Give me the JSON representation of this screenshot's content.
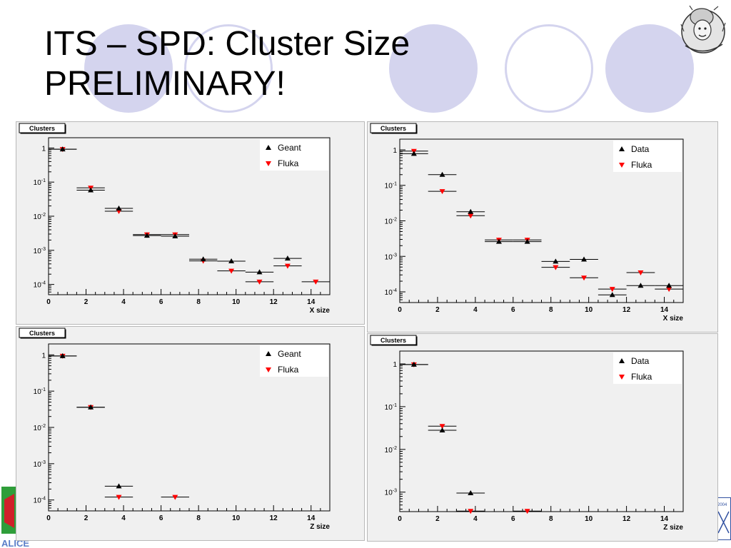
{
  "slide": {
    "title_line1": "ITS – SPD: Cluster Size",
    "title_line2": "PRELIMINARY!",
    "footer_logo_text": "ALICE",
    "corner_logo_text": "2004"
  },
  "colors": {
    "primary_series": "#000000",
    "fluka": "#ff0000",
    "deco_circle": "#d4d4ee",
    "panel_bg": "#f0f0f0"
  },
  "chart_data": [
    {
      "type": "scatter",
      "stat_box": "Clusters",
      "xlabel": "X size",
      "ylabel": "",
      "xlim": [
        0,
        15
      ],
      "ylim": [
        5e-05,
        2
      ],
      "log_y": true,
      "x_ticks": [
        "0",
        "2",
        "4",
        "6",
        "8",
        "10",
        "12",
        "14"
      ],
      "y_ticks": [
        "1",
        "10-1",
        "10-2",
        "10-3",
        "10-4"
      ],
      "legend_position": "top-right",
      "series": [
        {
          "name": "Geant",
          "marker": "triangle-up",
          "color": "#000000",
          "points": [
            [
              0.75,
              0.92
            ],
            [
              2.25,
              0.058
            ],
            [
              3.75,
              0.017
            ],
            [
              5.25,
              0.0027
            ],
            [
              6.75,
              0.0026
            ],
            [
              8.25,
              0.00055
            ],
            [
              9.75,
              0.00048
            ],
            [
              11.25,
              0.00023
            ],
            [
              12.75,
              0.00058
            ]
          ],
          "xerr": [
            0.75,
            0.75,
            0.75,
            0.75,
            0.75,
            0.75,
            0.75,
            0.75,
            0.75
          ]
        },
        {
          "name": "Fluka",
          "marker": "triangle-down",
          "color": "#ff0000",
          "points": [
            [
              0.75,
              0.92
            ],
            [
              2.25,
              0.068
            ],
            [
              3.75,
              0.014
            ],
            [
              5.25,
              0.0029
            ],
            [
              6.75,
              0.0029
            ],
            [
              8.25,
              0.00049
            ],
            [
              9.75,
              0.00025
            ],
            [
              11.25,
              0.00012
            ],
            [
              12.75,
              0.00035
            ],
            [
              14.25,
              0.00012
            ]
          ],
          "xerr": [
            0.75,
            0.75,
            0.75,
            0.75,
            0.75,
            0.75,
            0.75,
            0.75,
            0.75,
            0.75
          ]
        }
      ]
    },
    {
      "type": "scatter",
      "stat_box": "Clusters",
      "xlabel": "X size",
      "ylabel": "",
      "xlim": [
        0,
        15
      ],
      "ylim": [
        5e-05,
        2
      ],
      "log_y": true,
      "x_ticks": [
        "0",
        "2",
        "4",
        "6",
        "8",
        "10",
        "12",
        "14"
      ],
      "y_ticks": [
        "1",
        "10-1",
        "10-2",
        "10-3",
        "10-4"
      ],
      "legend_position": "top-right",
      "series": [
        {
          "name": "Data",
          "marker": "triangle-up",
          "color": "#000000",
          "points": [
            [
              0.75,
              0.78
            ],
            [
              2.25,
              0.2
            ],
            [
              3.75,
              0.018
            ],
            [
              5.25,
              0.0026
            ],
            [
              6.75,
              0.0026
            ],
            [
              8.25,
              0.00072
            ],
            [
              9.75,
              0.00082
            ],
            [
              11.25,
              8.2e-05
            ],
            [
              12.75,
              0.00015
            ],
            [
              14.25,
              0.00015
            ]
          ],
          "xerr": [
            0.75,
            0.75,
            0.75,
            0.75,
            0.75,
            0.75,
            0.75,
            0.75,
            0.75,
            0.75
          ]
        },
        {
          "name": "Fluka",
          "marker": "triangle-down",
          "color": "#ff0000",
          "points": [
            [
              0.75,
              0.92
            ],
            [
              2.25,
              0.068
            ],
            [
              3.75,
              0.014
            ],
            [
              5.25,
              0.0029
            ],
            [
              6.75,
              0.0029
            ],
            [
              8.25,
              0.00049
            ],
            [
              9.75,
              0.00025
            ],
            [
              11.25,
              0.00012
            ],
            [
              12.75,
              0.00035
            ],
            [
              14.25,
              0.00012
            ]
          ],
          "xerr": [
            0.75,
            0.75,
            0.75,
            0.75,
            0.75,
            0.75,
            0.75,
            0.75,
            0.75,
            0.75
          ]
        }
      ]
    },
    {
      "type": "scatter",
      "stat_box": "Clusters",
      "xlabel": "Z size",
      "ylabel": "",
      "xlim": [
        0,
        15
      ],
      "ylim": [
        5e-05,
        2
      ],
      "log_y": true,
      "x_ticks": [
        "0",
        "2",
        "4",
        "6",
        "8",
        "10",
        "12",
        "14"
      ],
      "y_ticks": [
        "1",
        "10-1",
        "10-2",
        "10-3",
        "10-4"
      ],
      "legend_position": "top-right",
      "series": [
        {
          "name": "Geant",
          "marker": "triangle-up",
          "color": "#000000",
          "points": [
            [
              0.75,
              0.93
            ],
            [
              2.25,
              0.036
            ],
            [
              3.75,
              0.00024
            ]
          ],
          "xerr": [
            0.75,
            0.75,
            0.75
          ]
        },
        {
          "name": "Fluka",
          "marker": "triangle-down",
          "color": "#ff0000",
          "points": [
            [
              0.75,
              0.93
            ],
            [
              2.25,
              0.036
            ],
            [
              3.75,
              0.00012
            ],
            [
              6.75,
              0.00012
            ]
          ],
          "xerr": [
            0.75,
            0.75,
            0.75,
            0.75
          ]
        }
      ]
    },
    {
      "type": "scatter",
      "stat_box": "Clusters",
      "xlabel": "Z size",
      "ylabel": "",
      "xlim": [
        0,
        15
      ],
      "ylim": [
        0.00035,
        2
      ],
      "log_y": true,
      "x_ticks": [
        "0",
        "2",
        "4",
        "6",
        "8",
        "10",
        "12",
        "14"
      ],
      "y_ticks": [
        "1",
        "10-1",
        "10-2",
        "10-3"
      ],
      "legend_position": "top-right",
      "series": [
        {
          "name": "Data",
          "marker": "triangle-up",
          "color": "#000000",
          "points": [
            [
              0.75,
              0.97
            ],
            [
              2.25,
              0.028
            ],
            [
              3.75,
              0.00095
            ]
          ],
          "xerr": [
            0.75,
            0.75,
            0.75
          ]
        },
        {
          "name": "Fluka",
          "marker": "triangle-down",
          "color": "#ff0000",
          "points": [
            [
              0.75,
              0.97
            ],
            [
              2.25,
              0.035
            ],
            [
              3.75,
              0.00036
            ],
            [
              6.75,
              0.00036
            ]
          ],
          "xerr": [
            0.75,
            0.75,
            0.75,
            0.75
          ]
        }
      ]
    }
  ]
}
